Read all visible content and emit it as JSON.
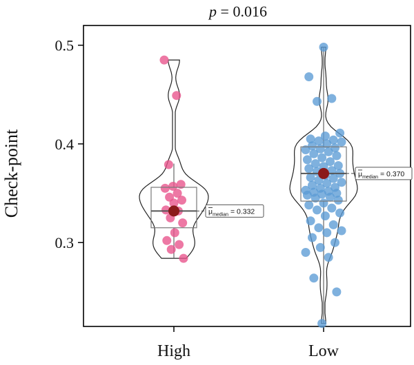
{
  "chart_data": {
    "type": "violin",
    "title": "p = 0.016",
    "title_parts": {
      "p": "p",
      "rest": " = 0.016"
    },
    "xlabel": "",
    "ylabel": "Check-point",
    "categories": [
      "High",
      "Low"
    ],
    "ylim": [
      0.215,
      0.52
    ],
    "yticks": [
      "0.3",
      "0.4",
      "0.5"
    ],
    "grid": false,
    "series": [
      {
        "category": "High",
        "color": "#E8528A",
        "q1": 0.315,
        "median": 0.332,
        "q3": 0.356,
        "whisker_low": 0.284,
        "whisker_high": 0.38,
        "median_label": {
          "mu": "μ",
          "sub": "median",
          "value": " = 0.332"
        },
        "points": [
          0.485,
          0.449,
          0.379,
          0.359,
          0.357,
          0.355,
          0.35,
          0.346,
          0.343,
          0.34,
          0.333,
          0.332,
          0.325,
          0.32,
          0.31,
          0.302,
          0.298,
          0.293,
          0.284
        ]
      },
      {
        "category": "Low",
        "color": "#5B9BD5",
        "q1": 0.342,
        "median": 0.37,
        "q3": 0.397,
        "whisker_low": 0.218,
        "whisker_high": 0.498,
        "median_label": {
          "mu": "μ",
          "sub": "median",
          "value": " = 0.370"
        },
        "points": [
          0.498,
          0.468,
          0.446,
          0.443,
          0.411,
          0.408,
          0.405,
          0.404,
          0.403,
          0.402,
          0.4,
          0.398,
          0.396,
          0.395,
          0.394,
          0.392,
          0.39,
          0.388,
          0.386,
          0.384,
          0.382,
          0.38,
          0.378,
          0.377,
          0.375,
          0.373,
          0.372,
          0.37,
          0.368,
          0.366,
          0.365,
          0.363,
          0.361,
          0.36,
          0.358,
          0.356,
          0.355,
          0.353,
          0.352,
          0.351,
          0.35,
          0.349,
          0.348,
          0.346,
          0.345,
          0.343,
          0.34,
          0.338,
          0.335,
          0.333,
          0.33,
          0.327,
          0.322,
          0.318,
          0.315,
          0.312,
          0.31,
          0.305,
          0.3,
          0.295,
          0.29,
          0.285,
          0.264,
          0.25,
          0.218
        ]
      }
    ]
  }
}
